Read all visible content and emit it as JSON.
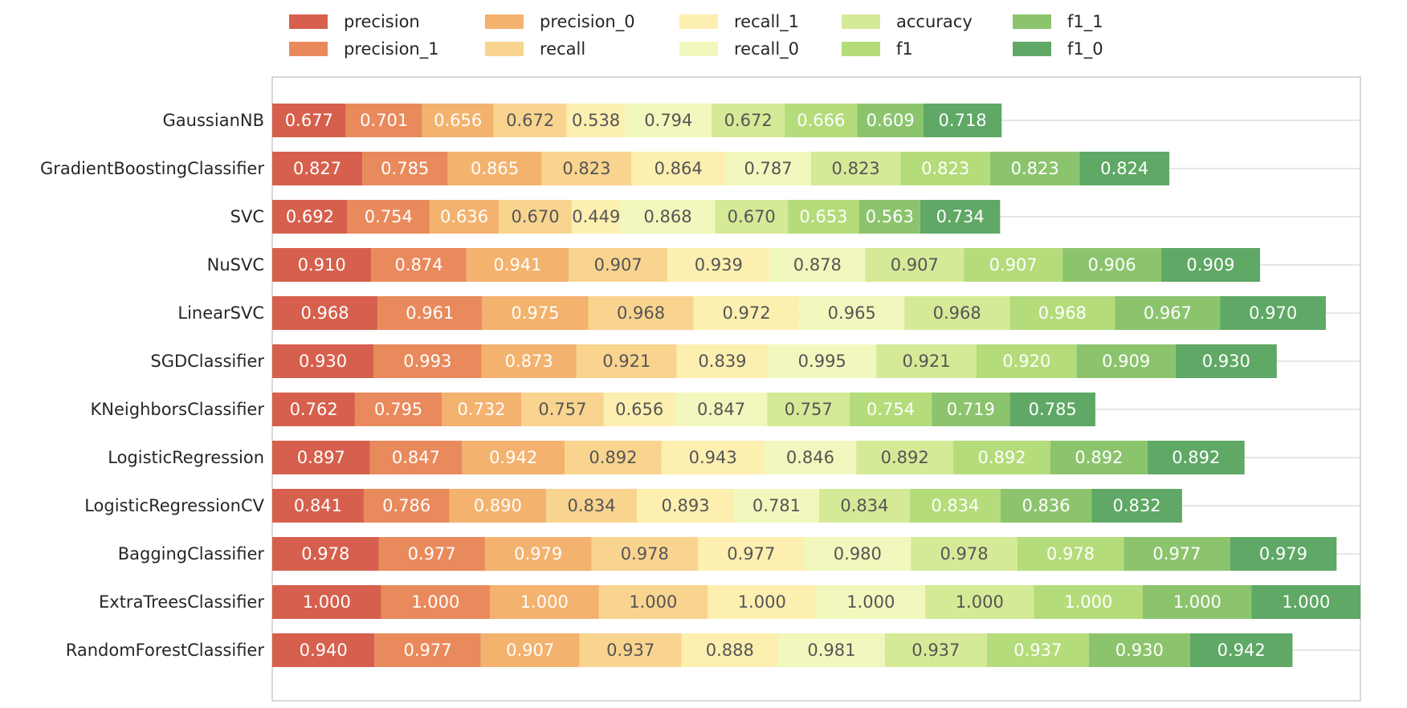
{
  "chart_data": {
    "type": "bar",
    "orientation": "horizontal",
    "stacked": true,
    "title": "",
    "xlabel": "",
    "ylabel": "",
    "legend_position": "top",
    "grid": true,
    "categories": [
      "GaussianNB",
      "GradientBoostingClassifier",
      "SVC",
      "NuSVC",
      "LinearSVC",
      "SGDClassifier",
      "KNeighborsClassifier",
      "LogisticRegression",
      "LogisticRegressionCV",
      "BaggingClassifier",
      "ExtraTreesClassifier",
      "RandomForestClassifier"
    ],
    "series": [
      {
        "name": "precision",
        "color": "#d6604d",
        "label_color": "#ffffff",
        "values": [
          0.677,
          0.827,
          0.692,
          0.91,
          0.968,
          0.93,
          0.762,
          0.897,
          0.841,
          0.978,
          1.0,
          0.94
        ],
        "labels": [
          "0.677",
          "0.827",
          "0.692",
          "0.910",
          "0.968",
          "0.930",
          "0.762",
          "0.897",
          "0.841",
          "0.978",
          "1.000",
          "0.940"
        ]
      },
      {
        "name": "precision_1",
        "color": "#e98a5c",
        "label_color": "#ffffff",
        "values": [
          0.701,
          0.785,
          0.754,
          0.874,
          0.961,
          0.993,
          0.795,
          0.847,
          0.786,
          0.977,
          1.0,
          0.977
        ],
        "labels": [
          "0.701",
          "0.785",
          "0.754",
          "0.874",
          "0.961",
          "0.993",
          "0.795",
          "0.847",
          "0.786",
          "0.977",
          "1.000",
          "0.977"
        ]
      },
      {
        "name": "precision_0",
        "color": "#f3b26e",
        "label_color": "#ffffff",
        "values": [
          0.656,
          0.865,
          0.636,
          0.941,
          0.975,
          0.873,
          0.732,
          0.942,
          0.89,
          0.979,
          1.0,
          0.907
        ],
        "labels": [
          "0.656",
          "0.865",
          "0.636",
          "0.941",
          "0.975",
          "0.873",
          "0.732",
          "0.942",
          "0.890",
          "0.979",
          "1.000",
          "0.907"
        ]
      },
      {
        "name": "recall",
        "color": "#f9d48f",
        "label_color": "#555555",
        "values": [
          0.672,
          0.823,
          0.67,
          0.907,
          0.968,
          0.921,
          0.757,
          0.892,
          0.834,
          0.978,
          1.0,
          0.937
        ],
        "labels": [
          "0.672",
          "0.823",
          "0.670",
          "0.907",
          "0.968",
          "0.921",
          "0.757",
          "0.892",
          "0.834",
          "0.978",
          "1.000",
          "0.937"
        ]
      },
      {
        "name": "recall_1",
        "color": "#fdefb0",
        "label_color": "#555555",
        "values": [
          0.538,
          0.864,
          0.449,
          0.939,
          0.972,
          0.839,
          0.656,
          0.943,
          0.893,
          0.977,
          1.0,
          0.888
        ],
        "labels": [
          "0.538",
          "0.864",
          "0.449",
          "0.939",
          "0.972",
          "0.839",
          "0.656",
          "0.943",
          "0.893",
          "0.977",
          "1.000",
          "0.888"
        ]
      },
      {
        "name": "recall_0",
        "color": "#f2f8bd",
        "label_color": "#555555",
        "values": [
          0.794,
          0.787,
          0.868,
          0.878,
          0.965,
          0.995,
          0.847,
          0.846,
          0.781,
          0.98,
          1.0,
          0.981
        ],
        "labels": [
          "0.794",
          "0.787",
          "0.868",
          "0.878",
          "0.965",
          "0.995",
          "0.847",
          "0.846",
          "0.781",
          "0.980",
          "1.000",
          "0.981"
        ]
      },
      {
        "name": "accuracy",
        "color": "#d5ea97",
        "label_color": "#555555",
        "values": [
          0.672,
          0.823,
          0.67,
          0.907,
          0.968,
          0.921,
          0.757,
          0.892,
          0.834,
          0.978,
          1.0,
          0.937
        ],
        "labels": [
          "0.672",
          "0.823",
          "0.670",
          "0.907",
          "0.968",
          "0.921",
          "0.757",
          "0.892",
          "0.834",
          "0.978",
          "1.000",
          "0.937"
        ]
      },
      {
        "name": "f1",
        "color": "#b4dc7a",
        "label_color": "#ffffff",
        "values": [
          0.666,
          0.823,
          0.653,
          0.907,
          0.968,
          0.92,
          0.754,
          0.892,
          0.834,
          0.978,
          1.0,
          0.937
        ],
        "labels": [
          "0.666",
          "0.823",
          "0.653",
          "0.907",
          "0.968",
          "0.920",
          "0.754",
          "0.892",
          "0.834",
          "0.978",
          "1.000",
          "0.937"
        ]
      },
      {
        "name": "f1_1",
        "color": "#8cc46e",
        "label_color": "#ffffff",
        "values": [
          0.609,
          0.823,
          0.563,
          0.906,
          0.967,
          0.909,
          0.719,
          0.892,
          0.836,
          0.977,
          1.0,
          0.93
        ],
        "labels": [
          "0.609",
          "0.823",
          "0.563",
          "0.906",
          "0.967",
          "0.909",
          "0.719",
          "0.892",
          "0.836",
          "0.977",
          "1.000",
          "0.930"
        ]
      },
      {
        "name": "f1_0",
        "color": "#5fa865",
        "label_color": "#ffffff",
        "values": [
          0.718,
          0.824,
          0.734,
          0.909,
          0.97,
          0.93,
          0.785,
          0.892,
          0.832,
          0.979,
          1.0,
          0.942
        ],
        "labels": [
          "0.718",
          "0.824",
          "0.734",
          "0.909",
          "0.970",
          "0.930",
          "0.785",
          "0.892",
          "0.832",
          "0.979",
          "1.000",
          "0.942"
        ]
      }
    ]
  }
}
